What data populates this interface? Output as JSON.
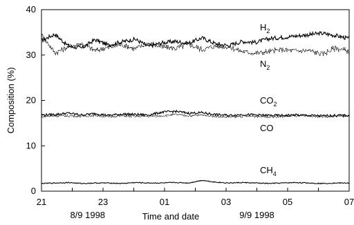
{
  "chart_data": {
    "type": "line",
    "xlabel": "Time and date",
    "ylabel": "Composition (%)",
    "ylim": [
      0,
      40
    ],
    "yticks": [
      0,
      10,
      20,
      30,
      40
    ],
    "xlim": [
      0,
      34
    ],
    "xticks": [
      {
        "value": 0,
        "label": "21"
      },
      {
        "value": 2,
        "label": "23"
      },
      {
        "value": 4,
        "label": "01"
      },
      {
        "value": 6,
        "label": "03"
      },
      {
        "value": 8,
        "label": "05"
      },
      {
        "value": 10,
        "label": "07"
      }
    ],
    "date_labels": [
      "8/9 1998",
      "9/9 1998"
    ],
    "grid": false,
    "series": [
      {
        "name": "H2",
        "label_main": "H",
        "label_sub": "2",
        "base": 32.8,
        "amp": 0.9,
        "values": [
          33.2,
          34.6,
          32.0,
          31.5,
          33.4,
          32.2,
          32.9,
          33.5,
          31.9,
          32.7,
          33.0,
          32.6,
          33.8,
          32.5,
          32.1,
          33.0,
          32.8,
          33.6,
          33.9,
          34.2,
          34.5,
          34.8,
          34.3,
          33.6
        ]
      },
      {
        "name": "N2",
        "label_main": "N",
        "label_sub": "2",
        "base": 31.6,
        "amp": 1.1,
        "values": [
          34.5,
          30.5,
          31.8,
          32.5,
          31.0,
          31.7,
          32.3,
          31.4,
          32.6,
          31.8,
          31.5,
          32.4,
          31.2,
          32.0,
          31.8,
          30.8,
          30.4,
          30.7,
          31.2,
          30.9,
          31.0,
          30.2,
          31.6,
          30.7
        ]
      },
      {
        "name": "CO2",
        "label_main": "CO",
        "label_sub": "2",
        "base": 16.9,
        "amp": 0.5,
        "values": [
          16.8,
          16.9,
          17.2,
          16.8,
          17.1,
          16.7,
          17.0,
          16.9,
          16.8,
          17.4,
          17.6,
          17.2,
          17.3,
          16.9,
          16.7,
          16.9,
          16.8,
          16.7,
          16.7,
          16.8,
          16.7,
          16.6,
          16.7,
          16.7
        ]
      },
      {
        "name": "CO",
        "label_main": "CO",
        "label_sub": "",
        "base": 16.6,
        "amp": 0.4,
        "values": [
          16.4,
          16.6,
          16.6,
          16.5,
          16.7,
          16.4,
          16.6,
          16.5,
          16.5,
          16.6,
          16.9,
          16.6,
          16.8,
          16.5,
          16.3,
          16.5,
          16.5,
          16.4,
          16.4,
          16.6,
          16.5,
          16.4,
          16.5,
          16.5
        ]
      },
      {
        "name": "CH4",
        "label_main": "CH",
        "label_sub": "4",
        "base": 1.8,
        "amp": 0.2,
        "values": [
          1.7,
          1.8,
          1.9,
          1.7,
          1.8,
          1.8,
          1.7,
          1.9,
          1.8,
          1.8,
          1.9,
          1.8,
          2.4,
          2.0,
          1.8,
          1.9,
          1.8,
          1.7,
          1.8,
          1.9,
          1.8,
          1.7,
          1.8,
          1.8
        ]
      }
    ]
  }
}
